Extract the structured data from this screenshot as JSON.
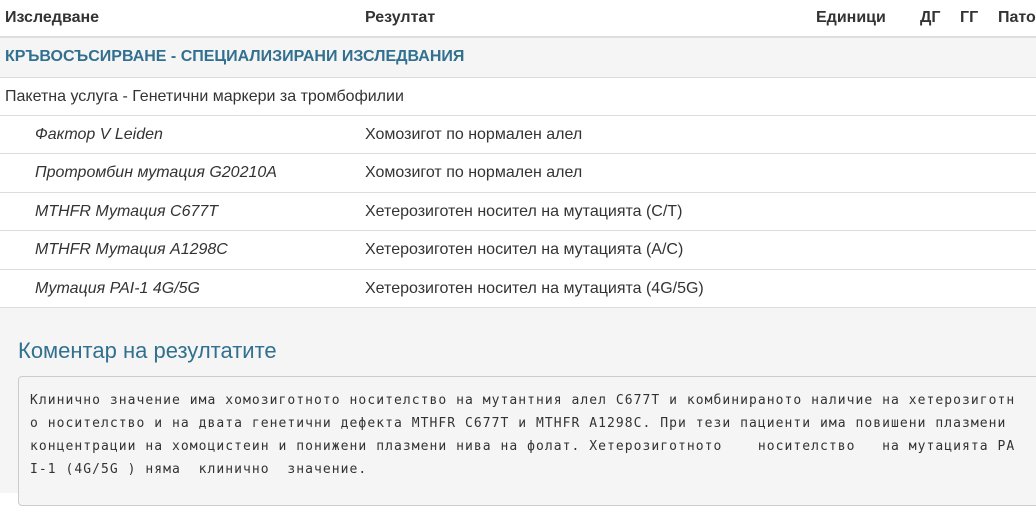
{
  "header": {
    "columns": [
      "Изследване",
      "Резултат",
      "Единици",
      "ДГ",
      "ГГ",
      "Пато"
    ]
  },
  "section": {
    "title": "КРЪВОСЪСИРВАНЕ - СПЕЦИАЛИЗИРАНИ ИЗСЛЕДВАНИЯ"
  },
  "package": {
    "title": "Пакетна услуга - Генетични маркери за тромбофилии"
  },
  "table": {
    "rows": [
      [
        "Фактор V Leiden",
        "Хомозигот по нормален алел"
      ],
      [
        "Протромбин мутация G20210A",
        "Хомозигот по нормален алел"
      ],
      [
        "MTHFR Мутация C677T",
        "Хетерозиготен носител на мутацията (C/T)"
      ],
      [
        "MTHFR Мутация A1298C",
        "Хетерозиготен носител на мутацията (A/C)"
      ],
      [
        "Мутация PAI-1 4G/5G",
        "Хетерозиготен носител на мутацията (4G/5G)"
      ]
    ]
  },
  "comment": {
    "title": "Коментар на резултатите",
    "lines": [
      "Клинично значение има хомозиготното носителство на мутантния алел C677T и комбинираното наличие на хетерозиготн",
      "о носителство и на двата генетични дефекта MTHFR C677T и MTHFR A1298C. При тези пациенти има повишени плазмени",
      "концентрации на хомоцистеин и понижени плазмени нива на фолат. Хетерозиготното    носителство   на мутацията PA",
      "I-1 (4G/5G ) няма  клинично  значение."
    ]
  }
}
